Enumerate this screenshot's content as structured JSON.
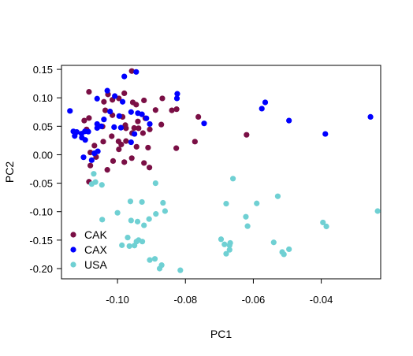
{
  "chart_data": {
    "type": "scatter",
    "xlabel": "PC1",
    "ylabel": "PC2",
    "xlim": [
      -0.1165,
      -0.0225
    ],
    "ylim": [
      -0.218,
      0.157
    ],
    "x_ticks": [
      -0.1,
      -0.08,
      -0.06,
      -0.04
    ],
    "x_tick_labels": [
      "-0.10",
      "-0.08",
      "-0.06",
      "-0.04"
    ],
    "y_ticks": [
      0.15,
      0.1,
      0.05,
      0.0,
      -0.05,
      -0.1,
      -0.15,
      -0.2
    ],
    "y_tick_labels": [
      "0.15",
      "0.10",
      "0.05",
      "0.00",
      "-0.05",
      "-0.10",
      "-0.15",
      "-0.20"
    ],
    "grid": false,
    "legend_position": "bottom-left",
    "series": [
      {
        "name": "CAK",
        "color": "#7A0F45",
        "points": [
          [
            -0.0958,
            0.147
          ],
          [
            -0.1084,
            0.1105
          ],
          [
            -0.1028,
            0.106
          ],
          [
            -0.098,
            0.108
          ],
          [
            -0.0996,
            0.099
          ],
          [
            -0.0868,
            0.099
          ],
          [
            -0.1015,
            0.0965
          ],
          [
            -0.0922,
            0.0955
          ],
          [
            -0.104,
            0.093
          ],
          [
            -0.0955,
            0.092
          ],
          [
            -0.0945,
            0.088
          ],
          [
            -0.0826,
            0.08
          ],
          [
            -0.084,
            0.078
          ],
          [
            -0.0888,
            0.0785
          ],
          [
            -0.1036,
            0.078
          ],
          [
            -0.1015,
            0.0695
          ],
          [
            -0.0985,
            0.0665
          ],
          [
            -0.0918,
            0.064
          ],
          [
            -0.0762,
            0.0665
          ],
          [
            -0.1084,
            0.0645
          ],
          [
            -0.1098,
            0.06
          ],
          [
            -0.094,
            0.0585
          ],
          [
            -0.0871,
            0.053
          ],
          [
            -0.0977,
            0.052
          ],
          [
            -0.1044,
            0.0495
          ],
          [
            -0.0951,
            0.047
          ],
          [
            -0.0975,
            0.0465
          ],
          [
            -0.0938,
            0.0465
          ],
          [
            -0.1091,
            0.0445
          ],
          [
            -0.0905,
            0.0445
          ],
          [
            -0.0925,
            0.038
          ],
          [
            -0.0957,
            0.038
          ],
          [
            -0.062,
            0.035
          ],
          [
            -0.1017,
            0.0325
          ],
          [
            -0.0997,
            0.0235
          ],
          [
            -0.0975,
            0.024
          ],
          [
            -0.1042,
            0.023
          ],
          [
            -0.0772,
            0.023
          ],
          [
            -0.0989,
            0.018
          ],
          [
            -0.1068,
            0.016
          ],
          [
            -0.0944,
            0.014
          ],
          [
            -0.0827,
            0.0115
          ],
          [
            -0.091,
            0.0125
          ],
          [
            -0.0996,
            0.0095
          ],
          [
            -0.108,
            0.004
          ],
          [
            -0.1063,
            -0.004
          ],
          [
            -0.0958,
            -0.006
          ],
          [
            -0.1013,
            -0.011
          ],
          [
            -0.098,
            -0.013
          ],
          [
            -0.0922,
            -0.0145
          ],
          [
            -0.108,
            -0.019
          ],
          [
            -0.0906,
            -0.0225
          ],
          [
            -0.103,
            -0.0265
          ],
          [
            -0.1084,
            -0.0475
          ]
        ]
      },
      {
        "name": "CAX",
        "color": "#0000FF",
        "points": [
          [
            -0.0945,
            0.1455
          ],
          [
            -0.098,
            0.1375
          ],
          [
            -0.103,
            0.1125
          ],
          [
            -0.0824,
            0.107
          ],
          [
            -0.1008,
            0.103
          ],
          [
            -0.106,
            0.0985
          ],
          [
            -0.0985,
            0.093
          ],
          [
            -0.0825,
            0.099
          ],
          [
            -0.0565,
            0.092
          ],
          [
            -0.114,
            0.077
          ],
          [
            -0.0575,
            0.081
          ],
          [
            -0.1022,
            0.076
          ],
          [
            -0.096,
            0.075
          ],
          [
            -0.094,
            0.073
          ],
          [
            -0.0928,
            0.071
          ],
          [
            -0.0995,
            0.068
          ],
          [
            -0.0255,
            0.0665
          ],
          [
            -0.0915,
            0.064
          ],
          [
            -0.0495,
            0.06
          ],
          [
            -0.104,
            0.062
          ],
          [
            -0.0745,
            0.055
          ],
          [
            -0.106,
            0.054
          ],
          [
            -0.1048,
            0.05
          ],
          [
            -0.0905,
            0.054
          ],
          [
            -0.101,
            0.0485
          ],
          [
            -0.099,
            0.0475
          ],
          [
            -0.106,
            0.047
          ],
          [
            -0.113,
            0.041
          ],
          [
            -0.1096,
            0.041
          ],
          [
            -0.112,
            0.04
          ],
          [
            -0.1086,
            0.0405
          ],
          [
            -0.1106,
            0.037
          ],
          [
            -0.1126,
            0.033
          ],
          [
            -0.1105,
            0.03
          ],
          [
            -0.1095,
            0.026
          ],
          [
            -0.0388,
            0.0365
          ],
          [
            -0.095,
            0.0365
          ],
          [
            -0.1058,
            0.006
          ],
          [
            -0.1068,
            0.0025
          ],
          [
            -0.096,
            0.022
          ],
          [
            -0.11,
            -0.0045
          ],
          [
            -0.1076,
            -0.0095
          ]
        ]
      },
      {
        "name": "USA",
        "color": "#6FD0D3",
        "points": [
          [
            -0.107,
            -0.0335
          ],
          [
            -0.1065,
            -0.048
          ],
          [
            -0.1076,
            -0.0515
          ],
          [
            -0.1046,
            -0.053
          ],
          [
            -0.066,
            -0.042
          ],
          [
            -0.0888,
            -0.05
          ],
          [
            -0.0528,
            -0.073
          ],
          [
            -0.0962,
            -0.082
          ],
          [
            -0.0928,
            -0.083
          ],
          [
            -0.0866,
            -0.0845
          ],
          [
            -0.068,
            -0.086
          ],
          [
            -0.059,
            -0.0855
          ],
          [
            -0.0234,
            -0.099
          ],
          [
            -0.086,
            -0.099
          ],
          [
            -0.1,
            -0.102
          ],
          [
            -0.0887,
            -0.104
          ],
          [
            -0.0622,
            -0.109
          ],
          [
            -0.0907,
            -0.113
          ],
          [
            -0.1045,
            -0.114
          ],
          [
            -0.096,
            -0.1155
          ],
          [
            -0.0941,
            -0.1175
          ],
          [
            -0.0395,
            -0.119
          ],
          [
            -0.0385,
            -0.126
          ],
          [
            -0.0922,
            -0.124
          ],
          [
            -0.0617,
            -0.1255
          ],
          [
            -0.0938,
            -0.15
          ],
          [
            -0.0944,
            -0.1525
          ],
          [
            -0.097,
            -0.1455
          ],
          [
            -0.0695,
            -0.1485
          ],
          [
            -0.0927,
            -0.1525
          ],
          [
            -0.0668,
            -0.155
          ],
          [
            -0.095,
            -0.1595
          ],
          [
            -0.0987,
            -0.159
          ],
          [
            -0.067,
            -0.159
          ],
          [
            -0.0685,
            -0.1575
          ],
          [
            -0.054,
            -0.154
          ],
          [
            -0.0965,
            -0.1605
          ],
          [
            -0.067,
            -0.167
          ],
          [
            -0.0495,
            -0.166
          ],
          [
            -0.0515,
            -0.171
          ],
          [
            -0.068,
            -0.174
          ],
          [
            -0.051,
            -0.175
          ],
          [
            -0.089,
            -0.183
          ],
          [
            -0.0905,
            -0.185
          ],
          [
            -0.087,
            -0.194
          ],
          [
            -0.0876,
            -0.2
          ],
          [
            -0.0815,
            -0.203
          ]
        ]
      }
    ]
  }
}
